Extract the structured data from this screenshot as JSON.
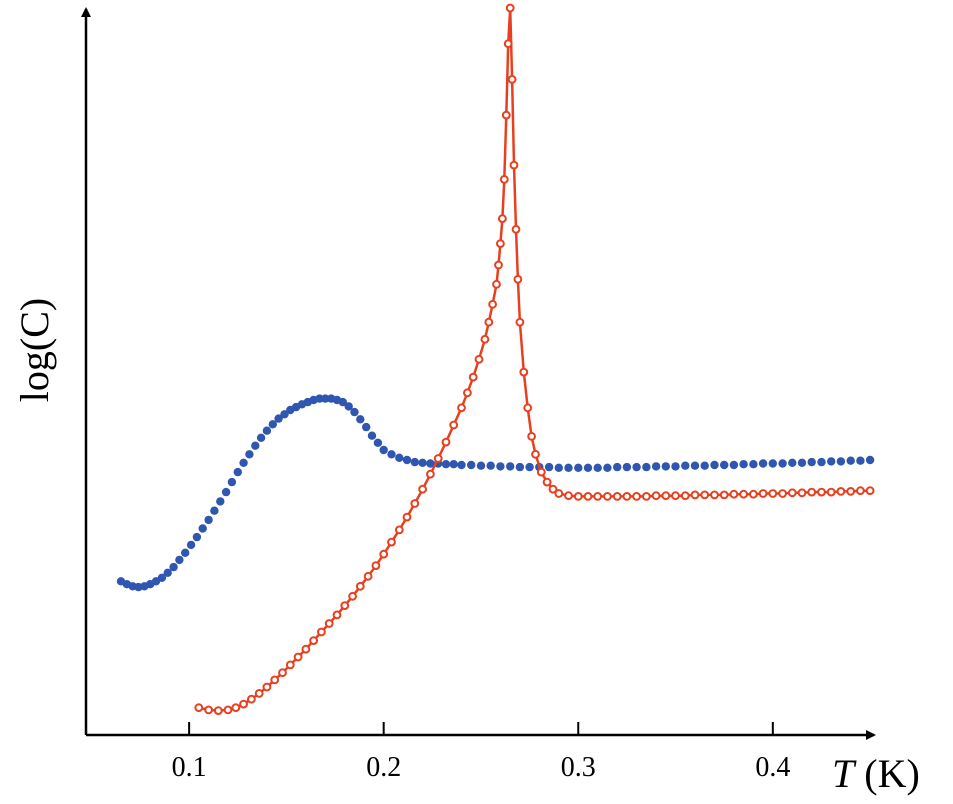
{
  "chart_data": {
    "type": "scatter",
    "title": "",
    "xlabel_var": "T",
    "xlabel_unit": " (K)",
    "ylabel": "log(C)",
    "xlim": [
      0.047,
      0.452
    ],
    "ylim": [
      0,
      1
    ],
    "x_ticks": [
      "0.1",
      "0.2",
      "0.3",
      "0.4"
    ],
    "x_tick_values": [
      0.1,
      0.2,
      0.3,
      0.4
    ],
    "grid": false,
    "legend": "none",
    "series": [
      {
        "marker": "filled",
        "color": "#2f57b0",
        "line": false,
        "x": [
          0.065,
          0.068,
          0.071,
          0.074,
          0.077,
          0.08,
          0.083,
          0.086,
          0.089,
          0.092,
          0.095,
          0.098,
          0.101,
          0.104,
          0.107,
          0.11,
          0.113,
          0.116,
          0.119,
          0.122,
          0.125,
          0.128,
          0.131,
          0.134,
          0.137,
          0.14,
          0.143,
          0.146,
          0.149,
          0.152,
          0.155,
          0.158,
          0.161,
          0.164,
          0.167,
          0.17,
          0.173,
          0.176,
          0.179,
          0.182,
          0.185,
          0.188,
          0.191,
          0.194,
          0.197,
          0.2,
          0.204,
          0.208,
          0.212,
          0.216,
          0.22,
          0.224,
          0.228,
          0.232,
          0.236,
          0.24,
          0.245,
          0.25,
          0.255,
          0.26,
          0.265,
          0.27,
          0.275,
          0.28,
          0.285,
          0.29,
          0.295,
          0.3,
          0.305,
          0.31,
          0.315,
          0.32,
          0.325,
          0.33,
          0.335,
          0.34,
          0.345,
          0.35,
          0.355,
          0.36,
          0.365,
          0.37,
          0.375,
          0.38,
          0.385,
          0.39,
          0.395,
          0.4,
          0.405,
          0.41,
          0.415,
          0.42,
          0.425,
          0.43,
          0.435,
          0.44,
          0.445,
          0.45
        ],
        "y": [
          0.197,
          0.193,
          0.19,
          0.189,
          0.19,
          0.193,
          0.197,
          0.202,
          0.209,
          0.217,
          0.227,
          0.237,
          0.248,
          0.259,
          0.271,
          0.283,
          0.296,
          0.309,
          0.322,
          0.336,
          0.35,
          0.363,
          0.375,
          0.387,
          0.398,
          0.408,
          0.417,
          0.425,
          0.431,
          0.437,
          0.441,
          0.445,
          0.448,
          0.451,
          0.453,
          0.453,
          0.453,
          0.451,
          0.448,
          0.442,
          0.434,
          0.424,
          0.413,
          0.401,
          0.391,
          0.381,
          0.375,
          0.37,
          0.367,
          0.364,
          0.363,
          0.362,
          0.362,
          0.361,
          0.361,
          0.36,
          0.36,
          0.359,
          0.359,
          0.358,
          0.358,
          0.357,
          0.357,
          0.357,
          0.357,
          0.356,
          0.356,
          0.356,
          0.356,
          0.356,
          0.356,
          0.357,
          0.357,
          0.357,
          0.357,
          0.358,
          0.358,
          0.358,
          0.359,
          0.359,
          0.359,
          0.36,
          0.36,
          0.36,
          0.361,
          0.361,
          0.362,
          0.362,
          0.362,
          0.363,
          0.363,
          0.364,
          0.364,
          0.365,
          0.365,
          0.366,
          0.366,
          0.367
        ]
      },
      {
        "marker": "open",
        "color": "#e8401f",
        "line": true,
        "x": [
          0.105,
          0.11,
          0.115,
          0.12,
          0.124,
          0.128,
          0.132,
          0.136,
          0.14,
          0.144,
          0.148,
          0.152,
          0.156,
          0.16,
          0.164,
          0.168,
          0.172,
          0.176,
          0.18,
          0.184,
          0.188,
          0.192,
          0.196,
          0.2,
          0.204,
          0.208,
          0.212,
          0.216,
          0.22,
          0.224,
          0.228,
          0.232,
          0.236,
          0.24,
          0.243,
          0.246,
          0.249,
          0.252,
          0.254,
          0.256,
          0.258,
          0.259,
          0.26,
          0.261,
          0.262,
          0.263,
          0.264,
          0.265,
          0.266,
          0.267,
          0.268,
          0.269,
          0.27,
          0.272,
          0.274,
          0.276,
          0.278,
          0.281,
          0.284,
          0.287,
          0.29,
          0.295,
          0.3,
          0.305,
          0.31,
          0.315,
          0.32,
          0.325,
          0.33,
          0.335,
          0.34,
          0.345,
          0.35,
          0.355,
          0.36,
          0.365,
          0.37,
          0.375,
          0.38,
          0.385,
          0.39,
          0.395,
          0.4,
          0.405,
          0.41,
          0.415,
          0.42,
          0.425,
          0.43,
          0.435,
          0.44,
          0.445,
          0.45
        ],
        "y": [
          0.02,
          0.017,
          0.016,
          0.017,
          0.02,
          0.025,
          0.032,
          0.04,
          0.049,
          0.059,
          0.069,
          0.08,
          0.091,
          0.102,
          0.114,
          0.126,
          0.138,
          0.15,
          0.163,
          0.176,
          0.19,
          0.204,
          0.219,
          0.235,
          0.252,
          0.269,
          0.287,
          0.306,
          0.326,
          0.347,
          0.369,
          0.392,
          0.416,
          0.44,
          0.461,
          0.483,
          0.508,
          0.536,
          0.56,
          0.585,
          0.613,
          0.64,
          0.67,
          0.705,
          0.76,
          0.85,
          0.95,
          1.0,
          0.9,
          0.78,
          0.69,
          0.62,
          0.56,
          0.49,
          0.44,
          0.4,
          0.375,
          0.35,
          0.336,
          0.326,
          0.32,
          0.317,
          0.316,
          0.316,
          0.316,
          0.316,
          0.316,
          0.316,
          0.316,
          0.316,
          0.317,
          0.317,
          0.317,
          0.317,
          0.318,
          0.318,
          0.318,
          0.318,
          0.319,
          0.319,
          0.319,
          0.32,
          0.32,
          0.32,
          0.321,
          0.321,
          0.322,
          0.322,
          0.322,
          0.323,
          0.323,
          0.324,
          0.324
        ]
      }
    ]
  }
}
